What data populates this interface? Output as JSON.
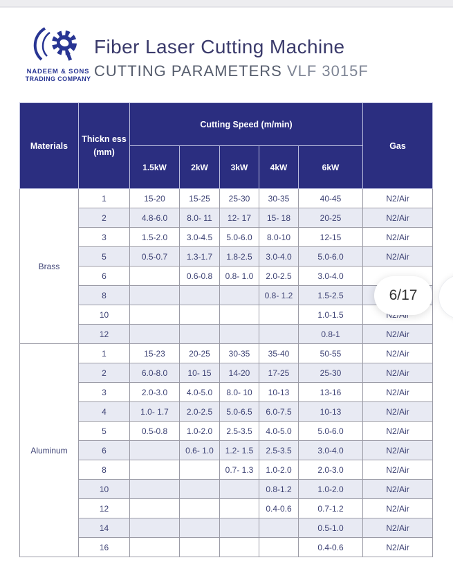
{
  "brand": {
    "company_line1": "NADEEM & SONS",
    "company_line2": "TRADING COMPANY"
  },
  "header": {
    "title": "Fiber Laser Cutting Machine",
    "subtitle": "CUTTING PARAMETERS",
    "model": "VLF 3015F"
  },
  "overlay": {
    "page_indicator": "6/17"
  },
  "table": {
    "colors": {
      "header_bg": "#2b2e80",
      "row_alt": "#e8eaf3",
      "body_text": "#3d4274",
      "grid_line": "#9b9ba6"
    },
    "columns": {
      "materials": "Materials",
      "thickness_line1": "Thickn ess",
      "thickness_line2": "(mm)",
      "cutting_speed": "Cutting Speed (m/min)",
      "gas": "Gas",
      "power_levels": [
        {
          "label": "1.5kW",
          "emphasis": false
        },
        {
          "label": "2kW",
          "emphasis": false
        },
        {
          "label": "3kW",
          "emphasis": true
        },
        {
          "label": "4kW",
          "emphasis": false
        },
        {
          "label": "6kW",
          "emphasis": false
        }
      ]
    },
    "sections": [
      {
        "material": "Brass",
        "rows": [
          {
            "thickness": "1",
            "speeds": [
              "15-20",
              "15-25",
              "25-30",
              "30-35",
              "40-45"
            ],
            "gas": "N2/Air"
          },
          {
            "thickness": "2",
            "speeds": [
              "4.8-6.0",
              "8.0- 11",
              "12- 17",
              "15- 18",
              "20-25"
            ],
            "gas": "N2/Air"
          },
          {
            "thickness": "3",
            "speeds": [
              "1.5-2.0",
              "3.0-4.5",
              "5.0-6.0",
              "8.0-10",
              "12-15"
            ],
            "gas": "N2/Air"
          },
          {
            "thickness": "5",
            "speeds": [
              "0.5-0.7",
              "1.3-1.7",
              "1.8-2.5",
              "3.0-4.0",
              "5.0-6.0"
            ],
            "gas": "N2/Air"
          },
          {
            "thickness": "6",
            "speeds": [
              "",
              "0.6-0.8",
              "0.8- 1.0",
              "2.0-2.5",
              "3.0-4.0"
            ],
            "gas": ""
          },
          {
            "thickness": "8",
            "speeds": [
              "",
              "",
              "",
              "0.8- 1.2",
              "1.5-2.5"
            ],
            "gas": ""
          },
          {
            "thickness": "10",
            "speeds": [
              "",
              "",
              "",
              "",
              "1.0-1.5"
            ],
            "gas": "N2/Air"
          },
          {
            "thickness": "12",
            "speeds": [
              "",
              "",
              "",
              "",
              "0.8-1"
            ],
            "gas": "N2/Air"
          }
        ]
      },
      {
        "material": "Aluminum",
        "rows": [
          {
            "thickness": "1",
            "speeds": [
              "15-23",
              "20-25",
              "30-35",
              "35-40",
              "50-55"
            ],
            "gas": "N2/Air"
          },
          {
            "thickness": "2",
            "speeds": [
              "6.0-8.0",
              "10- 15",
              "14-20",
              "17-25",
              "25-30"
            ],
            "gas": "N2/Air"
          },
          {
            "thickness": "3",
            "speeds": [
              "2.0-3.0",
              "4.0-5.0",
              "8.0- 10",
              "10-13",
              "13-16"
            ],
            "gas": "N2/Air"
          },
          {
            "thickness": "4",
            "speeds": [
              "1.0- 1.7",
              "2.0-2.5",
              "5.0-6.5",
              "6.0-7.5",
              "10-13"
            ],
            "gas": "N2/Air"
          },
          {
            "thickness": "5",
            "speeds": [
              "0.5-0.8",
              "1.0-2.0",
              "2.5-3.5",
              "4.0-5.0",
              "5.0-6.0"
            ],
            "gas": "N2/Air"
          },
          {
            "thickness": "6",
            "speeds": [
              "",
              "0.6- 1.0",
              "1.2- 1.5",
              "2.5-3.5",
              "3.0-4.0"
            ],
            "gas": "N2/Air"
          },
          {
            "thickness": "8",
            "speeds": [
              "",
              "",
              "0.7- 1.3",
              "1.0-2.0",
              "2.0-3.0"
            ],
            "gas": "N2/Air"
          },
          {
            "thickness": "10",
            "speeds": [
              "",
              "",
              "",
              "0.8-1.2",
              "1.0-2.0"
            ],
            "gas": "N2/Air"
          },
          {
            "thickness": "12",
            "speeds": [
              "",
              "",
              "",
              "0.4-0.6",
              "0.7-1.2"
            ],
            "gas": "N2/Air"
          },
          {
            "thickness": "14",
            "speeds": [
              "",
              "",
              "",
              "",
              "0.5-1.0"
            ],
            "gas": "N2/Air"
          },
          {
            "thickness": "16",
            "speeds": [
              "",
              "",
              "",
              "",
              "0.4-0.6"
            ],
            "gas": "N2/Air"
          }
        ]
      }
    ]
  }
}
